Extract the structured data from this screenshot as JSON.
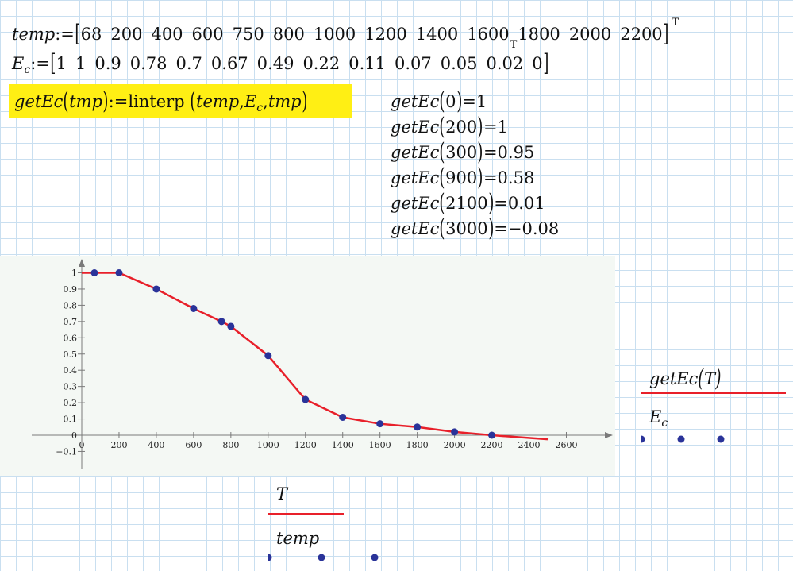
{
  "definitions": {
    "temp": {
      "name": "temp",
      "assign": ":=",
      "values": [
        "68",
        "200",
        "400",
        "600",
        "750",
        "800",
        "1000",
        "1200",
        "1400",
        "1600",
        "1800",
        "2000",
        "2200"
      ],
      "transpose": "T",
      "mid_mark": "T"
    },
    "ec": {
      "name": "E",
      "sub": "c",
      "assign": ":=",
      "values": [
        "1",
        "1",
        "0.9",
        "0.78",
        "0.7",
        "0.67",
        "0.49",
        "0.22",
        "0.11",
        "0.07",
        "0.05",
        "0.02",
        "0"
      ]
    }
  },
  "function_def": {
    "name": "getEc",
    "param": "tmp",
    "assign": ":=",
    "fn": "linterp",
    "arg1": "temp",
    "arg2_main": "E",
    "arg2_sub": "c",
    "arg3": "tmp",
    "highlight_color": "#ffef14"
  },
  "results": [
    {
      "fn": "getEc",
      "arg": "0",
      "value": "1"
    },
    {
      "fn": "getEc",
      "arg": "200",
      "value": "1"
    },
    {
      "fn": "getEc",
      "arg": "300",
      "value": "0.95"
    },
    {
      "fn": "getEc",
      "arg": "900",
      "value": "0.58"
    },
    {
      "fn": "getEc",
      "arg": "2100",
      "value": "0.01"
    },
    {
      "fn": "getEc",
      "arg": "3000",
      "value": "−0.08"
    }
  ],
  "chart_data": {
    "type": "line",
    "x_ticks": [
      "0",
      "200",
      "400",
      "600",
      "800",
      "1000",
      "1200",
      "1400",
      "1600",
      "1800",
      "2000",
      "2200",
      "2400",
      "2600"
    ],
    "y_ticks": [
      "−0.1",
      "0",
      "0.1",
      "0.2",
      "0.3",
      "0.4",
      "0.5",
      "0.6",
      "0.7",
      "0.8",
      "0.9",
      "1"
    ],
    "xlim": [
      0,
      2800
    ],
    "ylim": [
      -0.2,
      1.1
    ],
    "series": [
      {
        "role": "line",
        "color": "#e8202a",
        "x": [
          0,
          68,
          200,
          400,
          600,
          750,
          800,
          1000,
          1200,
          1400,
          1600,
          1800,
          2000,
          2200,
          2500
        ],
        "y": [
          1,
          1,
          1,
          0.9,
          0.78,
          0.7,
          0.67,
          0.49,
          0.22,
          0.11,
          0.07,
          0.05,
          0.02,
          0,
          -0.025
        ]
      },
      {
        "role": "points",
        "color": "#2a3399",
        "x": [
          68,
          200,
          400,
          600,
          750,
          800,
          1000,
          1200,
          1400,
          1600,
          1800,
          2000,
          2200
        ],
        "y": [
          1,
          1,
          0.9,
          0.78,
          0.7,
          0.67,
          0.49,
          0.22,
          0.11,
          0.07,
          0.05,
          0.02,
          0
        ]
      }
    ]
  },
  "legend_right": {
    "y1": "getEc",
    "y1_arg": "T",
    "y1_color": "#e8202a",
    "y2_main": "E",
    "y2_sub": "c",
    "y2_color": "#2a3399"
  },
  "legend_bottom": {
    "x1": "T",
    "x1_color": "#e8202a",
    "x2": "temp",
    "x2_color": "#2a3399"
  }
}
